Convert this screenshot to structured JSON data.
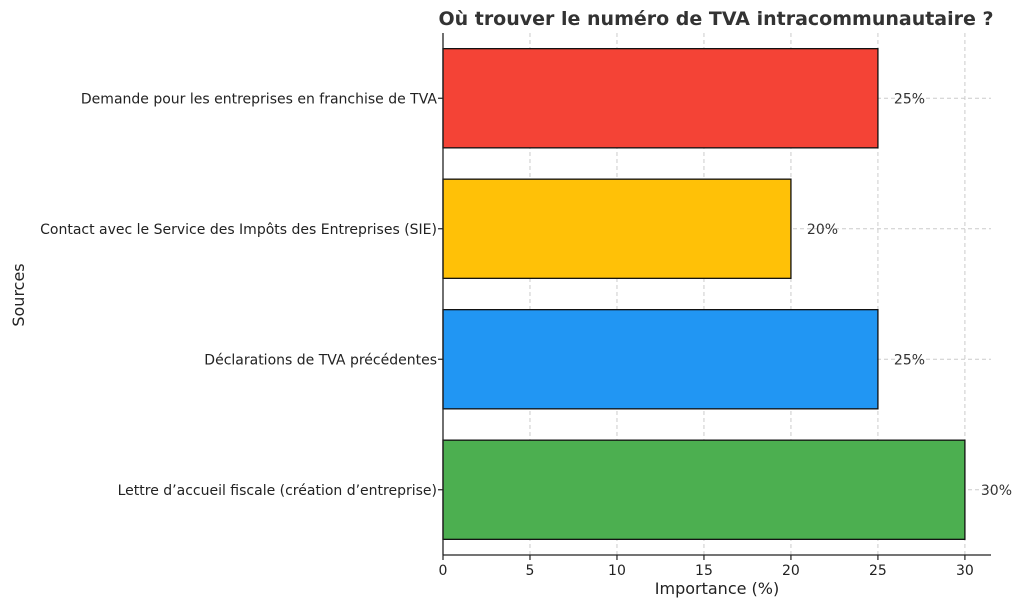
{
  "chart_data": {
    "type": "bar",
    "orientation": "horizontal",
    "title": "Où trouver le numéro de TVA intracommunautaire ?",
    "xlabel": "Importance (%)",
    "ylabel": "Sources",
    "xlim": [
      0,
      31.5
    ],
    "xticks": [
      0,
      5,
      10,
      15,
      20,
      25,
      30
    ],
    "grid": true,
    "categories": [
      "Demande pour les entreprises en franchise de TVA",
      "Contact avec le Service des Impôts des Entreprises (SIE)",
      "Déclarations de TVA précédentes",
      "Lettre d’accueil fiscale (création d’entreprise)"
    ],
    "values": [
      25,
      20,
      25,
      30
    ],
    "value_labels": [
      "25%",
      "20%",
      "25%",
      "30%"
    ],
    "colors": [
      "#F44336",
      "#FFC107",
      "#2196F3",
      "#4CAF50"
    ]
  }
}
